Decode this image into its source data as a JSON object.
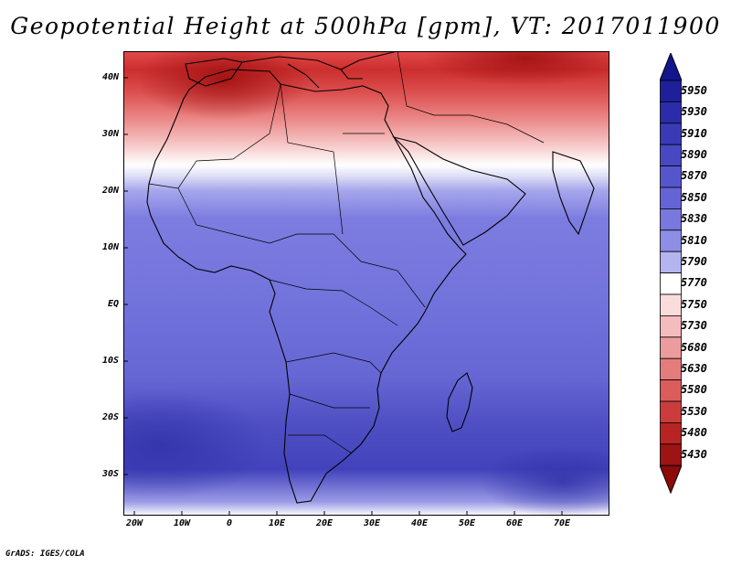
{
  "title": "Geopotential Height at 500hPa [gpm], VT: 2017011900",
  "credit": "GrADS: IGES/COLA",
  "map": {
    "variable": "Geopotential height at 500 hPa",
    "units": "gpm",
    "valid_time": "2017011900",
    "lon_range": [
      -23,
      80
    ],
    "lat_range": [
      -37,
      45
    ],
    "lat_labels": [
      "40N",
      "30N",
      "20N",
      "10N",
      "EQ",
      "10S",
      "20S",
      "30S"
    ],
    "lon_labels": [
      "20W",
      "10W",
      "0",
      "10E",
      "20E",
      "30E",
      "40E",
      "50E",
      "60E",
      "70E"
    ]
  },
  "colorbar": {
    "levels": [
      "5950",
      "5930",
      "5910",
      "5890",
      "5870",
      "5850",
      "5830",
      "5810",
      "5790",
      "5770",
      "5750",
      "5730",
      "5680",
      "5630",
      "5580",
      "5530",
      "5480",
      "5430"
    ],
    "colors": [
      "#1f1f9a",
      "#2c2cab",
      "#3a3ab8",
      "#4848c2",
      "#5656cc",
      "#6464d6",
      "#7878de",
      "#8e8ee6",
      "#b4b4f0",
      "#ffffff",
      "#fadcdc",
      "#f4bcbc",
      "#ec9c9c",
      "#e47c7c",
      "#dc5c5c",
      "#cc3c3c",
      "#b82424",
      "#9c1414"
    ],
    "top_arrow_color": "#14148c",
    "bottom_arrow_color": "#8c0a0a"
  }
}
